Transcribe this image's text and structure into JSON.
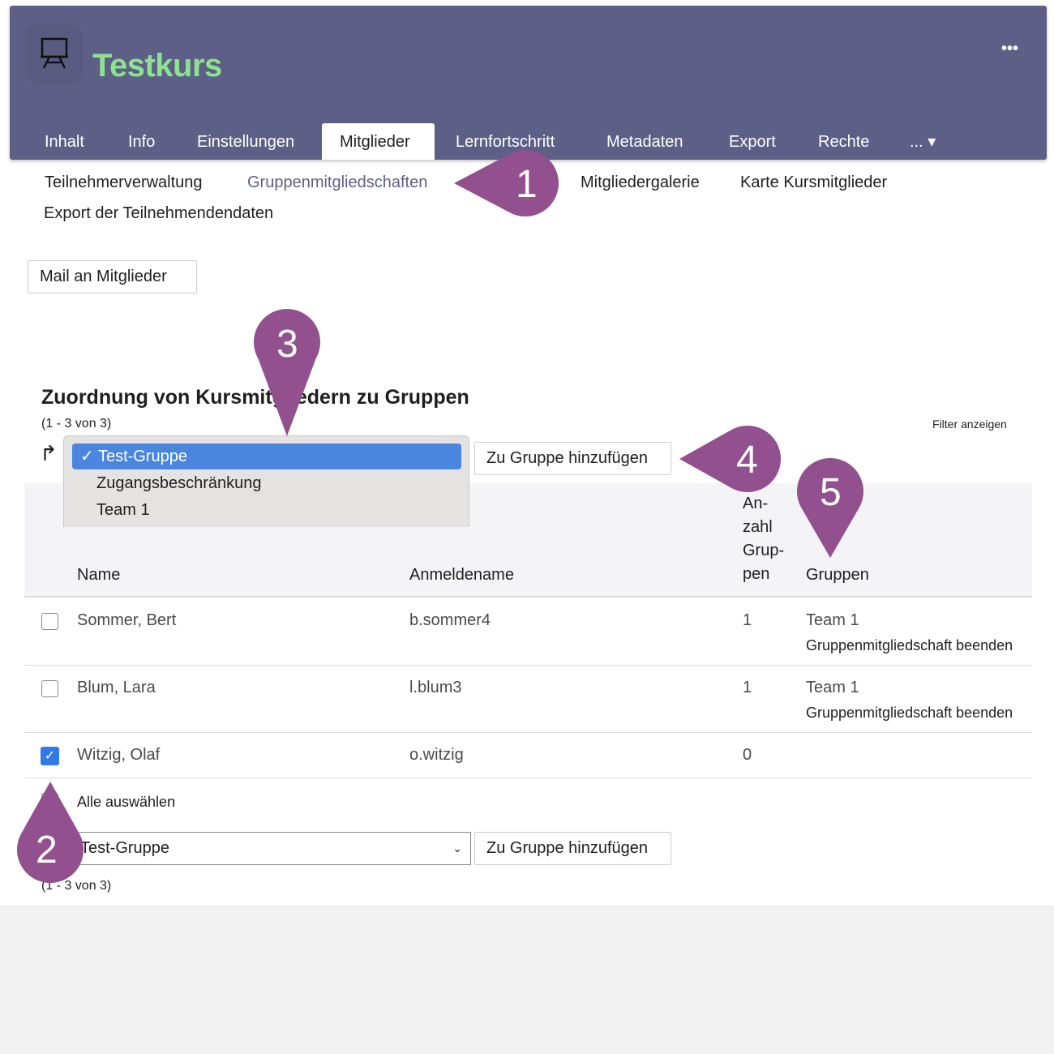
{
  "header": {
    "title": "Testkurs",
    "course_icon": "presentation-board-icon",
    "more_icon": "ellipsis-icon",
    "more_label": "•••",
    "colors": {
      "header_bg": "#5e5f86",
      "title": "#8de28f",
      "marker": "#92508f",
      "selection": "#4a86de"
    }
  },
  "tabs": [
    {
      "label": "Inhalt"
    },
    {
      "label": "Info"
    },
    {
      "label": "Einstellungen"
    },
    {
      "label": "Mitglieder",
      "active": true
    },
    {
      "label": "Lernfortschritt"
    },
    {
      "label": "Metadaten"
    },
    {
      "label": "Export"
    },
    {
      "label": "Rechte"
    },
    {
      "label": "... ▾"
    }
  ],
  "subtabs": [
    {
      "label": "Teilnehmerverwaltung"
    },
    {
      "label": "Gruppenmitgliedschaften",
      "active": true
    },
    {
      "label": "Mitgliedergalerie"
    },
    {
      "label": "Karte Kursmitglieder"
    },
    {
      "label": "Export der Teilnehmendendaten"
    }
  ],
  "mail_button": "Mail an Mitglieder",
  "section": {
    "title": "Zuordnung von Kursmitgliedern zu Gruppen",
    "count": "(1 - 3 von 3)",
    "filter": "Filter anzeigen",
    "arrow_icon": "↱"
  },
  "dropdown": {
    "options": [
      "✓ Test-Gruppe",
      "Zugangsbeschränkung",
      "Team 1"
    ],
    "selected": "Test-Gruppe"
  },
  "add_button": "Zu Gruppe hinzufügen",
  "table": {
    "headers": {
      "name": "Name",
      "login": "Anmeldename",
      "count": "An-\nzahl\nGrup-\npen",
      "groups": "Gruppen"
    },
    "rows": [
      {
        "name": "Sommer, Bert",
        "login": "b.sommer4",
        "count": "1",
        "group": "Team 1",
        "action": "Gruppenmitgliedschaft beenden",
        "checked": false
      },
      {
        "name": "Blum, Lara",
        "login": "l.blum3",
        "count": "1",
        "group": "Team 1",
        "action": "Gruppenmitgliedschaft beenden",
        "checked": false
      },
      {
        "name": "Witzig, Olaf",
        "login": "o.witzig",
        "count": "0",
        "group": "",
        "action": "",
        "checked": true
      }
    ],
    "select_all": "Alle auswählen"
  },
  "bottom": {
    "select_value": "Test-Gruppe",
    "add_button": "Zu Gruppe hinzufügen",
    "count": "(1 - 3 von 3)"
  },
  "markers": [
    "1",
    "2",
    "3",
    "4",
    "5"
  ]
}
